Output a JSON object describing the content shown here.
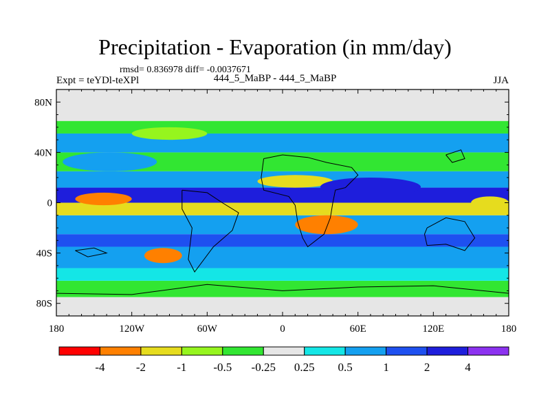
{
  "header": {
    "title": "Precipitation - Evaporation (in mm/day)",
    "stats": "rmsd= 0.836978 diff= -0.0037671",
    "expt": "Expt = teYDl-teXPl",
    "case": "444_5_MaBP - 444_5_MaBP",
    "season": "JJA"
  },
  "chart_data": {
    "type": "heatmap",
    "title": "Precipitation - Evaporation (in mm/day)",
    "xlabel": "",
    "ylabel": "",
    "xlim": [
      -180,
      180
    ],
    "ylim": [
      -90,
      90
    ],
    "x_ticks": [
      {
        "value": -180,
        "label": "180"
      },
      {
        "value": -120,
        "label": "120W"
      },
      {
        "value": -60,
        "label": "60W"
      },
      {
        "value": 0,
        "label": "0"
      },
      {
        "value": 60,
        "label": "60E"
      },
      {
        "value": 120,
        "label": "120E"
      },
      {
        "value": 180,
        "label": "180"
      }
    ],
    "y_ticks": [
      {
        "value": 80,
        "label": "80N"
      },
      {
        "value": 40,
        "label": "40N"
      },
      {
        "value": 0,
        "label": "0"
      },
      {
        "value": -40,
        "label": "40S"
      },
      {
        "value": -80,
        "label": "80S"
      }
    ],
    "colorbar": {
      "levels": [
        "-4",
        "-2",
        "-1",
        "-0.5",
        "-0.25",
        "0.25",
        "0.5",
        "1",
        "2",
        "4"
      ],
      "colors": [
        "#ff0000",
        "#ff8000",
        "#e6dc1e",
        "#96f51e",
        "#32e632",
        "#e6e6e6",
        "#14e6e6",
        "#14a0f0",
        "#1e50f0",
        "#1e1edc",
        "#8c32f0"
      ]
    },
    "zonal_bands": [
      {
        "lat": [
          -90,
          -75
        ],
        "value": 0.0
      },
      {
        "lat": [
          -75,
          -62
        ],
        "value": -0.4
      },
      {
        "lat": [
          -62,
          -52
        ],
        "value": 0.3
      },
      {
        "lat": [
          -52,
          -35
        ],
        "value": 0.8
      },
      {
        "lat": [
          -35,
          -25
        ],
        "value": 1.5
      },
      {
        "lat": [
          -25,
          -10
        ],
        "value": 0.7
      },
      {
        "lat": [
          -10,
          0
        ],
        "value": -1.5
      },
      {
        "lat": [
          0,
          12
        ],
        "value": 2.5
      },
      {
        "lat": [
          12,
          25
        ],
        "value": 0.6
      },
      {
        "lat": [
          25,
          40
        ],
        "value": -0.4
      },
      {
        "lat": [
          40,
          55
        ],
        "value": 0.5
      },
      {
        "lat": [
          55,
          65
        ],
        "value": -0.3
      },
      {
        "lat": [
          65,
          90
        ],
        "value": 0.0
      }
    ],
    "regional_anomalies": [
      {
        "lon": [
          -165,
          -120
        ],
        "lat": [
          -2,
          8
        ],
        "value": -2.5
      },
      {
        "lon": [
          -110,
          -80
        ],
        "lat": [
          -48,
          -36
        ],
        "value": -3.0
      },
      {
        "lon": [
          10,
          60
        ],
        "lat": [
          -25,
          -10
        ],
        "value": -2.5
      },
      {
        "lon": [
          -20,
          40
        ],
        "lat": [
          12,
          22
        ],
        "value": -2.0
      },
      {
        "lon": [
          30,
          110
        ],
        "lat": [
          5,
          20
        ],
        "value": 3.0
      },
      {
        "lon": [
          -175,
          -100
        ],
        "lat": [
          25,
          40
        ],
        "value": 0.8
      },
      {
        "lon": [
          150,
          180
        ],
        "lat": [
          -5,
          5
        ],
        "value": -1.8
      },
      {
        "lon": [
          -120,
          -60
        ],
        "lat": [
          50,
          60
        ],
        "value": -0.6
      }
    ]
  }
}
